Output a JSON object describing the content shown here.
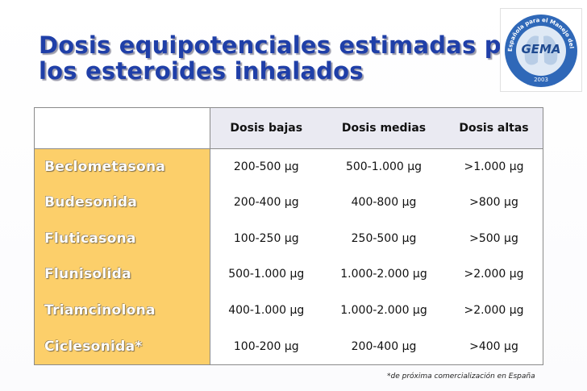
{
  "title": {
    "line1": "Dosis equipotenciales estimadas para",
    "line2": "los esteroides inhalados"
  },
  "logo": {
    "text": "GEMA",
    "ring_text": "Guía Española para el Manejo del Asma",
    "year": "2003",
    "icon": "lungs-logo-icon"
  },
  "table": {
    "headers": [
      "",
      "Dosis bajas",
      "Dosis medias",
      "Dosis altas"
    ],
    "rows": [
      {
        "drug": "Beclometasona",
        "low": "200-500 μg",
        "medium": "500-1.000 μg",
        "high": ">1.000 μg"
      },
      {
        "drug": "Budesonida",
        "low": "200-400 μg",
        "medium": "400-800 μg",
        "high": ">800 μg"
      },
      {
        "drug": "Fluticasona",
        "low": "100-250 μg",
        "medium": "250-500 μg",
        "high": ">500 μg"
      },
      {
        "drug": "Flunisolida",
        "low": "500-1.000 μg",
        "medium": "1.000-2.000 μg",
        "high": ">2.000 μg"
      },
      {
        "drug": "Triamcinolona",
        "low": "400-1.000 μg",
        "medium": "1.000-2.000 μg",
        "high": ">2.000 μg"
      },
      {
        "drug": "Ciclesonida*",
        "low": "100-200 μg",
        "medium": "200-400 μg",
        "high": ">400 μg"
      }
    ]
  },
  "footnote": "*de próxima comercialización en España",
  "colors": {
    "title": "#1f3fa8",
    "drug_column": "#fccf6a",
    "header_row": "#eaeaf2",
    "logo_ring": "#2f68b8"
  }
}
